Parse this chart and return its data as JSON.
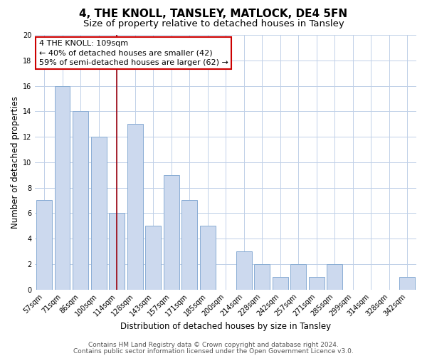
{
  "title": "4, THE KNOLL, TANSLEY, MATLOCK, DE4 5FN",
  "subtitle": "Size of property relative to detached houses in Tansley",
  "xlabel": "Distribution of detached houses by size in Tansley",
  "ylabel": "Number of detached properties",
  "bar_labels": [
    "57sqm",
    "71sqm",
    "86sqm",
    "100sqm",
    "114sqm",
    "128sqm",
    "143sqm",
    "157sqm",
    "171sqm",
    "185sqm",
    "200sqm",
    "214sqm",
    "228sqm",
    "242sqm",
    "257sqm",
    "271sqm",
    "285sqm",
    "299sqm",
    "314sqm",
    "328sqm",
    "342sqm"
  ],
  "bar_values": [
    7,
    16,
    14,
    12,
    6,
    13,
    5,
    9,
    7,
    5,
    0,
    3,
    2,
    1,
    2,
    1,
    2,
    0,
    0,
    0,
    1
  ],
  "bar_color": "#ccd9ee",
  "bar_edge_color": "#8aadd4",
  "vline_index": 4,
  "vline_color": "#99000d",
  "annotation_line1": "4 THE KNOLL: 109sqm",
  "annotation_line2": "← 40% of detached houses are smaller (42)",
  "annotation_line3": "59% of semi-detached houses are larger (62) →",
  "ylim": [
    0,
    20
  ],
  "yticks": [
    0,
    2,
    4,
    6,
    8,
    10,
    12,
    14,
    16,
    18,
    20
  ],
  "footer_line1": "Contains HM Land Registry data © Crown copyright and database right 2024.",
  "footer_line2": "Contains public sector information licensed under the Open Government Licence v3.0.",
  "bg_color": "#ffffff",
  "grid_color": "#c0d0e8",
  "title_fontsize": 11,
  "subtitle_fontsize": 9.5,
  "axis_label_fontsize": 8.5,
  "tick_fontsize": 7,
  "footer_fontsize": 6.5,
  "annotation_fontsize": 8
}
